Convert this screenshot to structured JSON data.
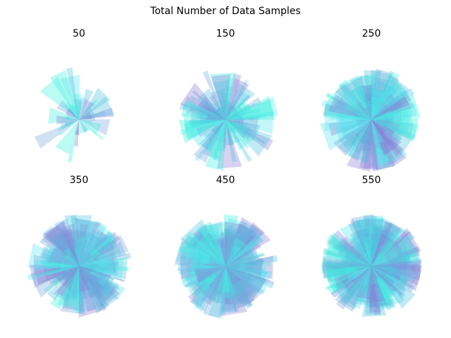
{
  "chart_data": {
    "type": "polar-bar",
    "title": "Total Number of Data Samples",
    "colors": [
      "#4fc3e0",
      "#7aa8de",
      "#8d7fd6",
      "#3ff0e0",
      "#59e6ee"
    ],
    "opacity": 0.35,
    "panels": [
      {
        "title": "50",
        "n_bars": 50,
        "r_max": 1.0,
        "seed": 11
      },
      {
        "title": "150",
        "n_bars": 150,
        "r_max": 1.0,
        "seed": 23
      },
      {
        "title": "250",
        "n_bars": 250,
        "r_max": 1.0,
        "seed": 37
      },
      {
        "title": "350",
        "n_bars": 350,
        "r_max": 1.0,
        "seed": 41
      },
      {
        "title": "450",
        "n_bars": 450,
        "r_max": 1.0,
        "seed": 53
      },
      {
        "title": "550",
        "n_bars": 550,
        "r_max": 1.0,
        "seed": 67
      }
    ]
  }
}
